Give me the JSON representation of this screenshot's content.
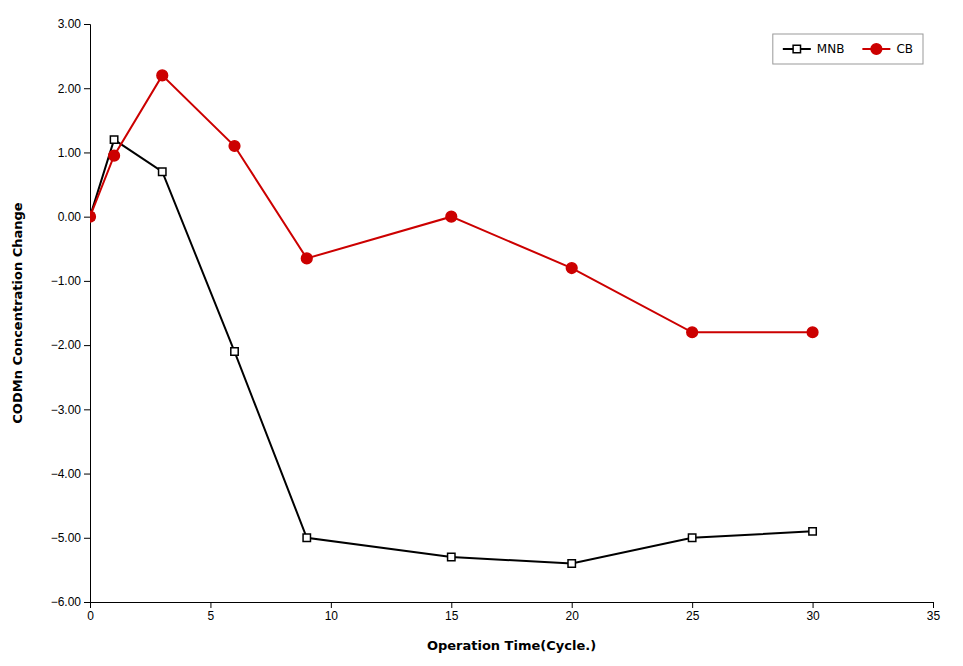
{
  "chart_data": {
    "type": "line",
    "xlabel": "Operation Time(Cycle.)",
    "ylabel": "CODMn Concentration Change",
    "x": [
      0,
      1,
      3,
      6,
      9,
      15,
      20,
      25,
      30
    ],
    "series": [
      {
        "name": "MNB",
        "color": "#000000",
        "marker": "square",
        "values": [
          0.0,
          1.2,
          0.7,
          -2.1,
          -5.0,
          -5.3,
          -5.4,
          -5.0,
          -4.9
        ]
      },
      {
        "name": "CB",
        "color": "#cc0000",
        "marker": "circle",
        "values": [
          0.0,
          0.95,
          2.2,
          1.1,
          -0.65,
          0.0,
          -0.8,
          -1.8,
          -1.8
        ]
      }
    ],
    "xlim": [
      0,
      35
    ],
    "ylim": [
      -6.0,
      3.0
    ],
    "xticks": [
      0,
      5,
      10,
      15,
      20,
      25,
      30,
      35
    ],
    "yticks": [
      {
        "value": -6.0,
        "label": "−6.00"
      },
      {
        "value": -5.0,
        "label": "−5.00"
      },
      {
        "value": -4.0,
        "label": "−4.00"
      },
      {
        "value": -3.0,
        "label": "−3.00"
      },
      {
        "value": -2.0,
        "label": "−2.00"
      },
      {
        "value": -1.0,
        "label": "−1.00"
      },
      {
        "value": 0.0,
        "label": "0.00"
      },
      {
        "value": 1.0,
        "label": "1.00"
      },
      {
        "value": 2.0,
        "label": "2.00"
      },
      {
        "value": 3.0,
        "label": "3.00"
      }
    ],
    "grid": false,
    "legend": "upper right"
  }
}
